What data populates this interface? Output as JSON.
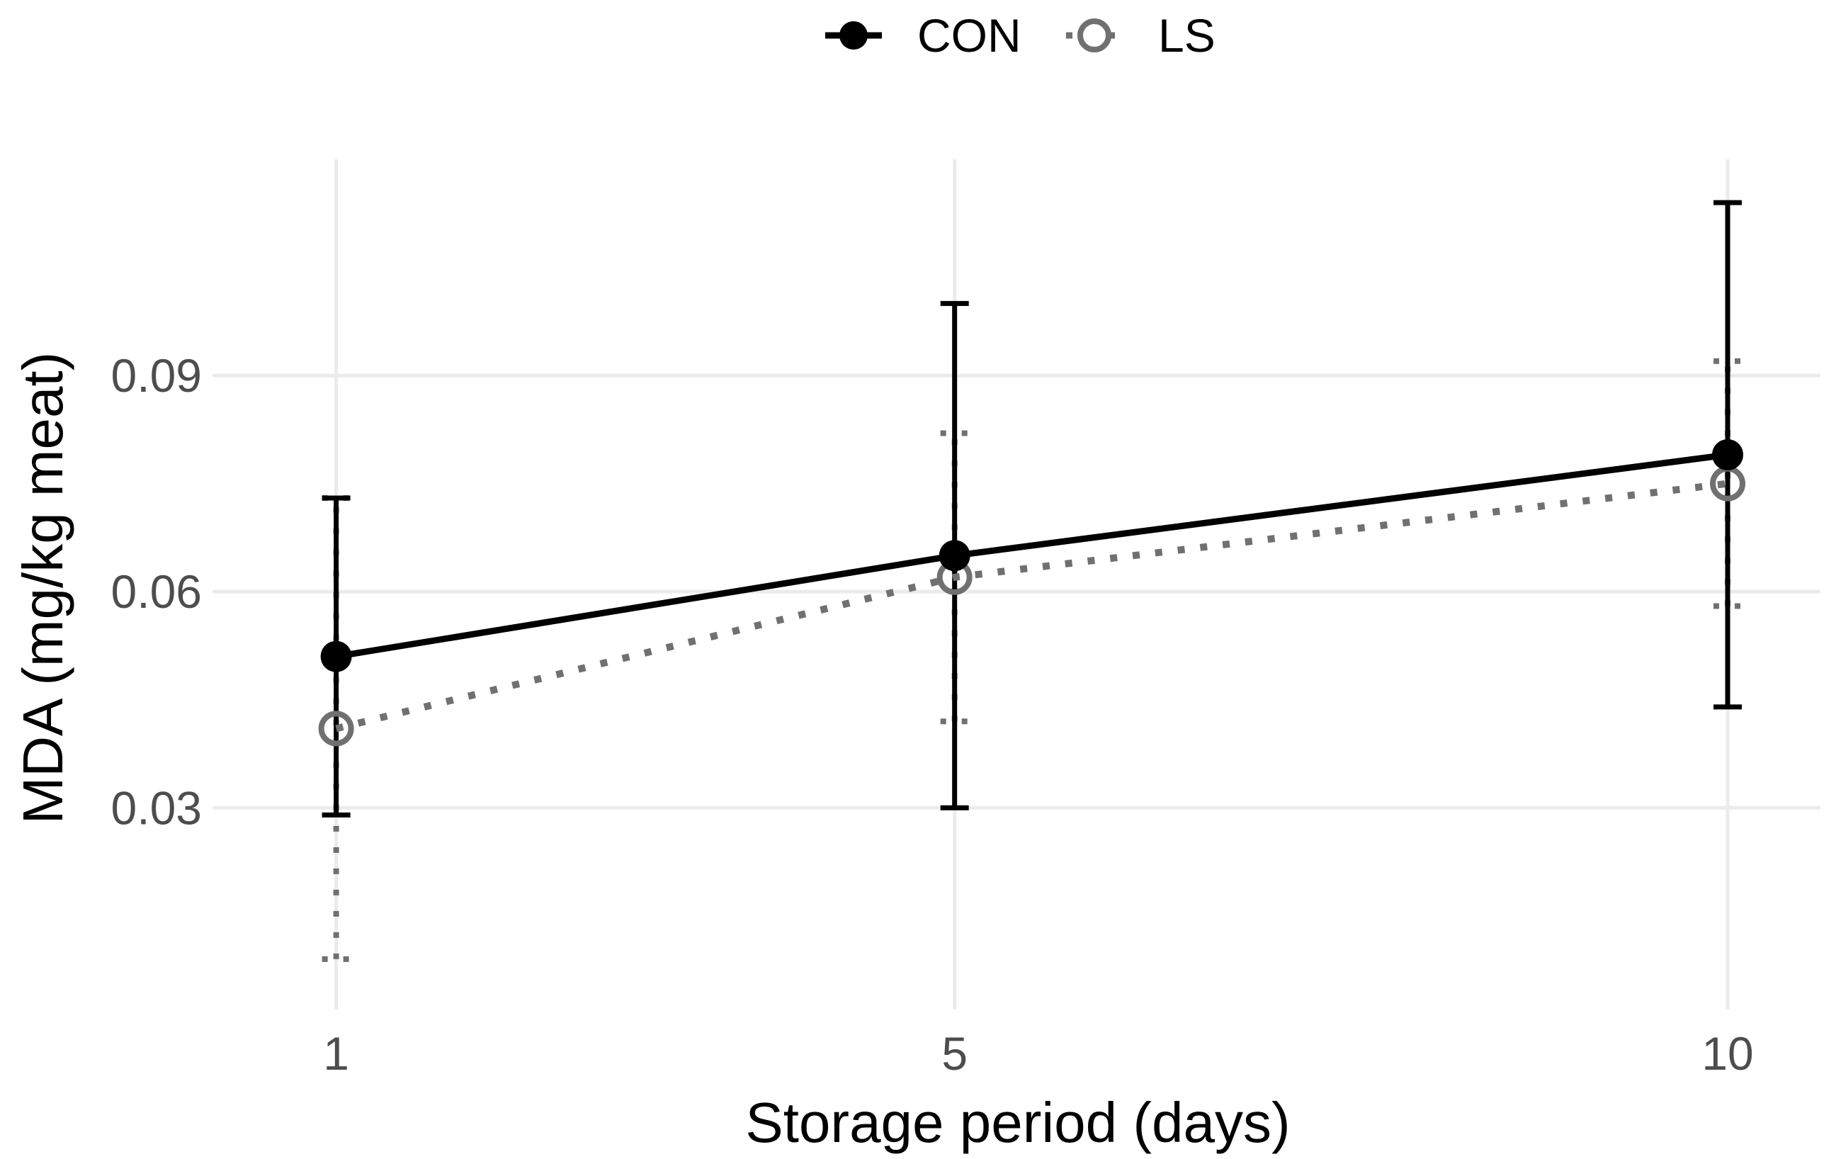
{
  "chart_data": {
    "type": "line",
    "title": "",
    "xlabel": "Storage period (days)",
    "ylabel": "MDA (mg/kg meat)",
    "x": [
      1,
      5,
      10
    ],
    "x_tick_labels": [
      "1",
      "5",
      "10"
    ],
    "y_tick_values": [
      0.03,
      0.06,
      0.09
    ],
    "y_tick_labels": [
      "0.03",
      "0.06",
      "0.09"
    ],
    "xlim": [
      0.2,
      10.6
    ],
    "ylim": [
      0.002,
      0.12
    ],
    "grid": true,
    "legend_position": "top",
    "series": [
      {
        "name": "CON",
        "color": "#000000",
        "line_style": "solid",
        "marker": "filled-circle",
        "values": [
          0.051,
          0.065,
          0.079
        ],
        "error_low": [
          0.029,
          0.03,
          0.044
        ],
        "error_high": [
          0.073,
          0.1,
          0.114
        ]
      },
      {
        "name": "LS",
        "color": "#707070",
        "line_style": "dotted",
        "marker": "open-circle",
        "values": [
          0.041,
          0.062,
          0.075
        ],
        "error_low": [
          0.009,
          0.042,
          0.058
        ],
        "error_high": [
          0.073,
          0.082,
          0.092
        ]
      }
    ]
  }
}
